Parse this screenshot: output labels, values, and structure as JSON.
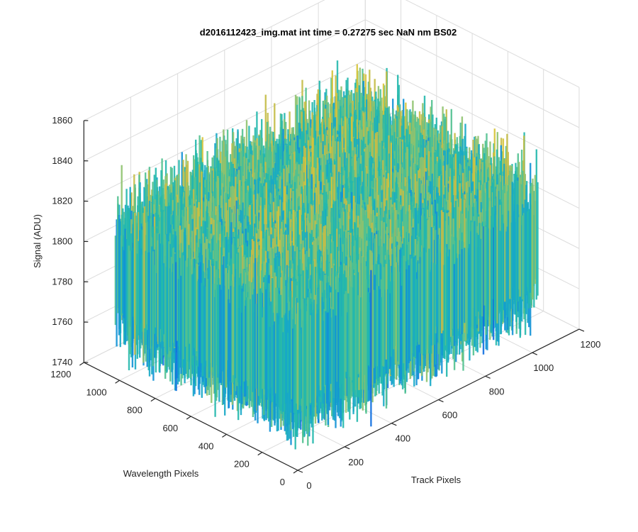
{
  "chart_data": {
    "type": "surface",
    "title": "d2016112423_img.mat int time = 0.27275 sec  NaN nm BS02",
    "xlabel": "Track Pixels",
    "ylabel": "Wavelength Pixels",
    "zlabel": "Signal (ADU)",
    "xlim": [
      0,
      1200
    ],
    "ylim": [
      0,
      1200
    ],
    "zlim": [
      1740,
      1860
    ],
    "x_ticks": [
      0,
      200,
      400,
      600,
      800,
      1000,
      1200
    ],
    "y_ticks": [
      0,
      200,
      400,
      600,
      800,
      1000,
      1200
    ],
    "z_ticks": [
      1740,
      1760,
      1780,
      1800,
      1820,
      1840,
      1860
    ],
    "data_extent": {
      "x": [
        1,
        1024
      ],
      "y": [
        1,
        1024
      ]
    },
    "signal_typical_range": [
      1765,
      1815
    ],
    "signal_mean": 1790,
    "colormap": "parula",
    "grid": true,
    "view": {
      "azimuth": -37.5,
      "elevation": 30
    }
  }
}
